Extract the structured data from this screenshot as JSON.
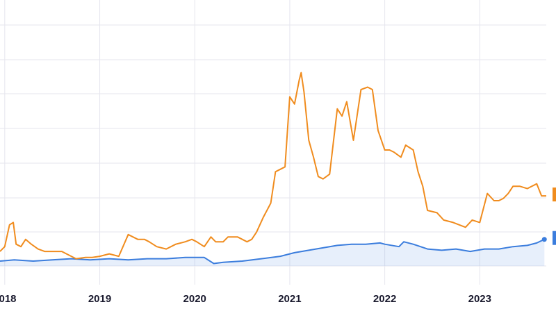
{
  "chart_data": {
    "type": "line",
    "x_ticks": [
      "2018",
      "2019",
      "2020",
      "2021",
      "2022",
      "2023"
    ],
    "x_range": [
      2017.95,
      2023.7
    ],
    "y_range": [
      0,
      100
    ],
    "grid": true,
    "legend": "none",
    "series": [
      {
        "color": "#f08c1e",
        "fill": false,
        "x": [
          2017.95,
          2018.0,
          2018.05,
          2018.09,
          2018.12,
          2018.17,
          2018.22,
          2018.28,
          2018.35,
          2018.42,
          2018.5,
          2018.6,
          2018.75,
          2018.85,
          2018.92,
          2019.0,
          2019.1,
          2019.2,
          2019.3,
          2019.4,
          2019.47,
          2019.52,
          2019.6,
          2019.7,
          2019.8,
          2019.9,
          2019.97,
          2020.02,
          2020.1,
          2020.17,
          2020.22,
          2020.3,
          2020.35,
          2020.45,
          2020.55,
          2020.6,
          2020.65,
          2020.72,
          2020.8,
          2020.85,
          2020.9,
          2020.95,
          2021.0,
          2021.05,
          2021.1,
          2021.12,
          2021.15,
          2021.2,
          2021.25,
          2021.3,
          2021.35,
          2021.42,
          2021.5,
          2021.55,
          2021.6,
          2021.67,
          2021.75,
          2021.82,
          2021.87,
          2021.93,
          2022.0,
          2022.05,
          2022.1,
          2022.17,
          2022.22,
          2022.3,
          2022.35,
          2022.4,
          2022.45,
          2022.55,
          2022.62,
          2022.72,
          2022.85,
          2022.92,
          2023.0,
          2023.08,
          2023.15,
          2023.2,
          2023.25,
          2023.3,
          2023.35,
          2023.42,
          2023.5,
          2023.6,
          2023.65,
          2023.7
        ],
        "y": [
          6,
          8,
          17,
          18,
          9,
          8,
          11,
          9,
          7,
          6,
          6,
          6,
          3,
          3.5,
          3.5,
          4,
          5,
          4,
          13,
          11,
          11,
          10,
          8,
          7,
          9,
          10,
          11,
          10,
          8,
          12,
          10,
          10,
          12,
          12,
          10,
          11,
          14,
          20,
          26,
          39,
          40,
          41,
          70,
          67,
          77,
          80,
          72,
          52,
          45,
          37,
          36,
          38,
          65,
          62,
          68,
          52,
          73,
          74,
          73,
          56,
          48,
          48,
          47,
          45,
          50,
          48,
          39,
          33,
          23,
          22,
          19,
          18,
          16,
          19,
          18,
          30,
          27,
          27,
          28,
          30,
          33,
          33,
          32,
          34,
          29,
          29
        ]
      },
      {
        "color": "#3b7ddd",
        "fill": true,
        "x": [
          2017.95,
          2018.1,
          2018.3,
          2018.5,
          2018.7,
          2018.9,
          2019.1,
          2019.3,
          2019.5,
          2019.7,
          2019.9,
          2020.1,
          2020.2,
          2020.3,
          2020.5,
          2020.7,
          2020.9,
          2021.05,
          2021.2,
          2021.35,
          2021.5,
          2021.65,
          2021.8,
          2021.95,
          2022.0,
          2022.15,
          2022.2,
          2022.3,
          2022.45,
          2022.6,
          2022.75,
          2022.9,
          2023.05,
          2023.2,
          2023.35,
          2023.5,
          2023.6,
          2023.68
        ],
        "y": [
          2,
          2.5,
          2,
          2.5,
          3,
          2.5,
          3,
          2.5,
          3,
          3,
          3.5,
          3.5,
          1,
          1.5,
          2,
          3,
          4,
          5.5,
          6.5,
          7.5,
          8.5,
          9,
          9,
          9.5,
          9,
          8,
          10,
          9,
          7,
          6.5,
          7,
          6,
          7,
          7,
          8,
          8.5,
          9.5,
          11
        ]
      }
    ]
  }
}
